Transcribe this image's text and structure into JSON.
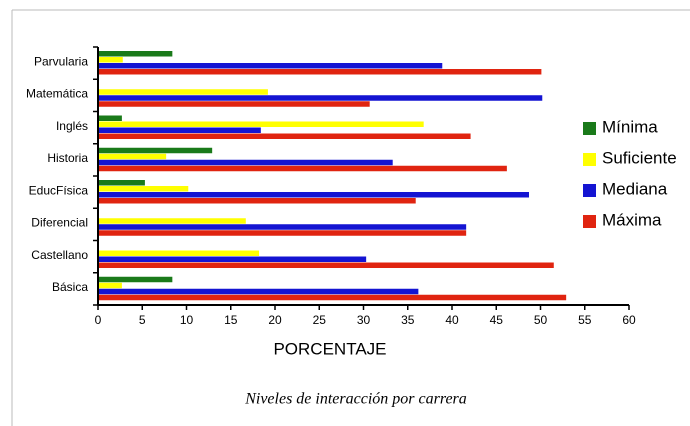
{
  "chart_data": {
    "type": "hbar",
    "categories": [
      "Parvularia",
      "Matemática",
      "Inglés",
      "Historia",
      "EducFísica",
      "Diferencial",
      "Castellano",
      "Básica"
    ],
    "series": [
      {
        "name": "Mínima",
        "color": "#1a7a1a",
        "values": [
          8.4,
          0,
          2.7,
          12.9,
          5.3,
          0,
          0,
          8.4
        ]
      },
      {
        "name": "Suficiente",
        "color": "#ffff00",
        "values": [
          2.8,
          19.2,
          36.8,
          7.7,
          10.2,
          16.7,
          18.2,
          2.7
        ]
      },
      {
        "name": "Mediana",
        "color": "#1414d2",
        "values": [
          38.9,
          50.2,
          18.4,
          33.3,
          48.7,
          41.6,
          30.3,
          36.2
        ]
      },
      {
        "name": "Máxima",
        "color": "#e02410",
        "values": [
          50.1,
          30.7,
          42.1,
          46.2,
          35.9,
          41.6,
          51.5,
          52.9
        ]
      }
    ],
    "xlabel": "PORCENTAJE",
    "caption": "Niveles de interacción por carrera",
    "xlim": [
      0,
      60
    ],
    "xticks": [
      0,
      5,
      10,
      15,
      20,
      25,
      30,
      35,
      40,
      45,
      50,
      55,
      60
    ],
    "legend": "right"
  }
}
